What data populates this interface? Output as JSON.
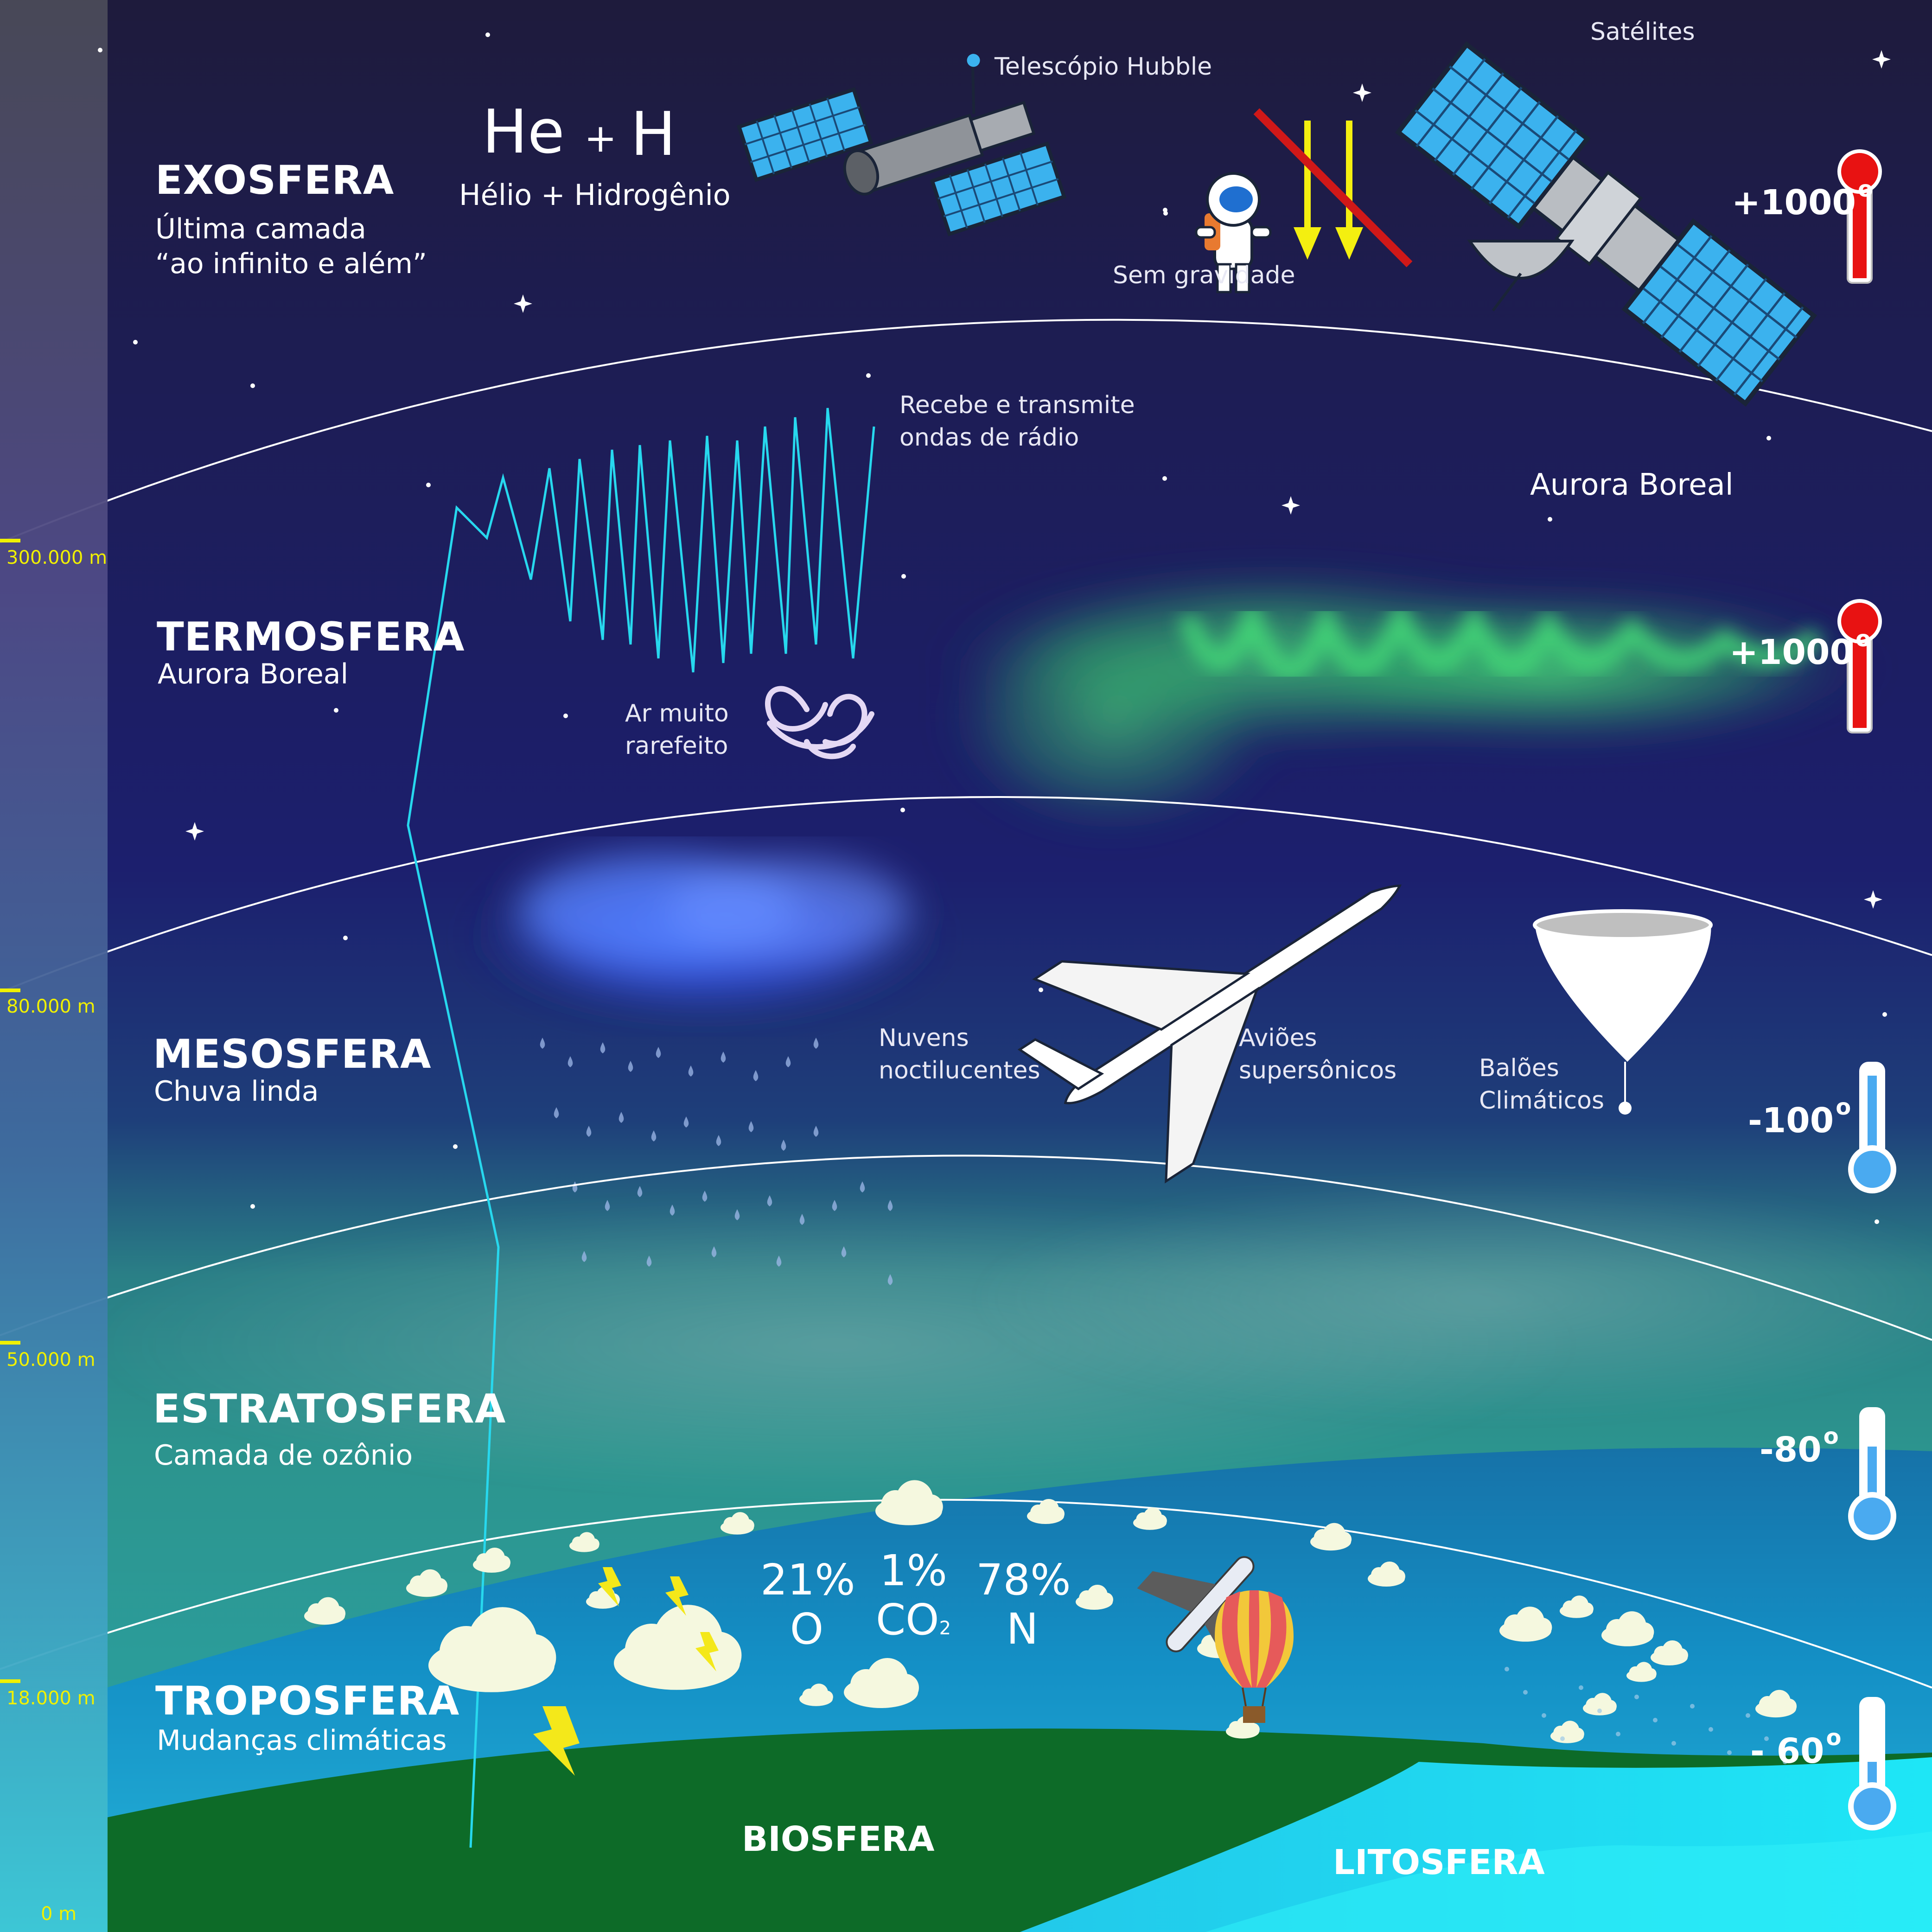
{
  "layers": [
    {
      "name": "EXOSFERA",
      "subtitle_1": "Última camada",
      "subtitle_2": "“ao infinito e além”",
      "temperature": "+1000"
    },
    {
      "name": "TERMOSFERA",
      "subtitle": "Aurora Boreal",
      "temperature": "+1000"
    },
    {
      "name": "MESOSFERA",
      "subtitle": "Chuva linda",
      "temperature": "-100"
    },
    {
      "name": "ESTRATOSFERA",
      "subtitle": "Camada de ozônio",
      "temperature": "-80"
    },
    {
      "name": "TROPOSFERA",
      "subtitle": "Mudanças climáticas",
      "temperature": "- 60"
    }
  ],
  "degree_symbol": "o",
  "altitudes": [
    "300.000 m",
    "80.000 m",
    "50.000 m",
    "18.000 m",
    "0 m"
  ],
  "exosphere": {
    "formula_he": "He",
    "formula_plus": "+",
    "formula_h": "H",
    "formula_caption": "Hélio  + Hidrogênio",
    "hubble": "Telescópio Hubble",
    "astronaut": "Sem gravidade",
    "satellites": "Satélites"
  },
  "thermosphere": {
    "radio_1": "Recebe e transmite",
    "radio_2": "ondas de rádio",
    "aurora": "Aurora Boreal",
    "air_1": "Ar muito",
    "air_2": "rarefeito"
  },
  "mesosphere": {
    "clouds_1": "Nuvens",
    "clouds_2": "noctilucentes",
    "planes_1": "Aviões",
    "planes_2": "supersônicos",
    "balloons_1": "Balões",
    "balloons_2": "Climáticos"
  },
  "troposphere": {
    "gases": [
      {
        "percent": "21%",
        "symbol": "O"
      },
      {
        "percent": "1%",
        "symbol": "CO",
        "subscript": "2"
      },
      {
        "percent": "78%",
        "symbol": "N"
      }
    ]
  },
  "ground": {
    "biosphere": "BIOSFERA",
    "lithosphere": "LITOSFERA"
  },
  "colors": {
    "space_top": "#1c1a3a",
    "space_mid": "#1c1f6a",
    "stratosphere": "#2a8a8c",
    "troposphere": "#1592c8",
    "biosphere": "#0d6b28",
    "lithosphere": "#1fd8f0",
    "altitude_label": "#f0f000",
    "radio_wave": "#27d8ee",
    "aurora": "#3fd873",
    "thermometer_hot": "#e81212",
    "thermometer_cold": "#4aaaf0"
  },
  "icons": [
    "star-icon",
    "telescope-icon",
    "astronaut-icon",
    "satellite-icon",
    "thermometer-icon",
    "swirl-icon",
    "cloud-icon",
    "rain-icon",
    "airplane-icon",
    "weather-balloon-icon",
    "lightning-icon",
    "hot-air-balloon-icon"
  ]
}
